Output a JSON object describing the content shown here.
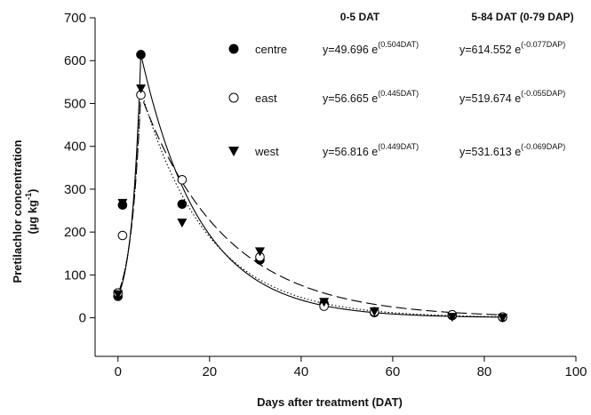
{
  "chart_data": {
    "type": "scatter",
    "xlabel": "Days after treatment (DAT)",
    "ylabel_line1": "Pretilachlor concentration",
    "ylabel_line2_main": "(µg kg",
    "ylabel_line2_sup": "-1",
    "ylabel_line2_end": ")",
    "xlim": [
      -5,
      100
    ],
    "ylim": [
      -90,
      700
    ],
    "xticks": [
      0,
      20,
      40,
      60,
      80,
      100
    ],
    "yticks": [
      0,
      100,
      200,
      300,
      400,
      500,
      600,
      700
    ],
    "legend_placement": "top-center",
    "equation_headers": [
      "0-5 DAT",
      "5-84 DAT (0-79 DAP)"
    ],
    "series": [
      {
        "name": "centre",
        "marker": "filled-circle",
        "line_style": "solid",
        "x": [
          0,
          1,
          5,
          14,
          31,
          45,
          56,
          73,
          84
        ],
        "y": [
          50,
          263,
          614,
          265,
          135,
          33,
          12,
          5,
          1
        ],
        "eq1": {
          "coef": "y=49.696 e",
          "exp": "(0.504DAT)"
        },
        "eq2": {
          "coef": "y=614.552 e",
          "exp": "(-0.077DAP)"
        }
      },
      {
        "name": "east",
        "marker": "open-circle",
        "line_style": "dashed",
        "x": [
          0,
          1,
          5,
          14,
          31,
          45,
          56,
          73,
          84
        ],
        "y": [
          58,
          192,
          520,
          322,
          142,
          27,
          14,
          7,
          2
        ],
        "eq1": {
          "coef": "y=56.665 e",
          "exp": "(0.445DAT)"
        },
        "eq2": {
          "coef": "y=519.674 e",
          "exp": "(-0.055DAP)"
        }
      },
      {
        "name": "west",
        "marker": "filled-triangle-down",
        "line_style": "dotted",
        "x": [
          0,
          1,
          5,
          14,
          31,
          45,
          56,
          73,
          84
        ],
        "y": [
          55,
          268,
          535,
          222,
          155,
          37,
          15,
          2,
          0
        ],
        "eq1": {
          "coef": "y=56.816 e",
          "exp": "(0.449DAT)"
        },
        "eq2": {
          "coef": "y=531.613 e",
          "exp": "(-0.069DAP)"
        }
      }
    ]
  }
}
